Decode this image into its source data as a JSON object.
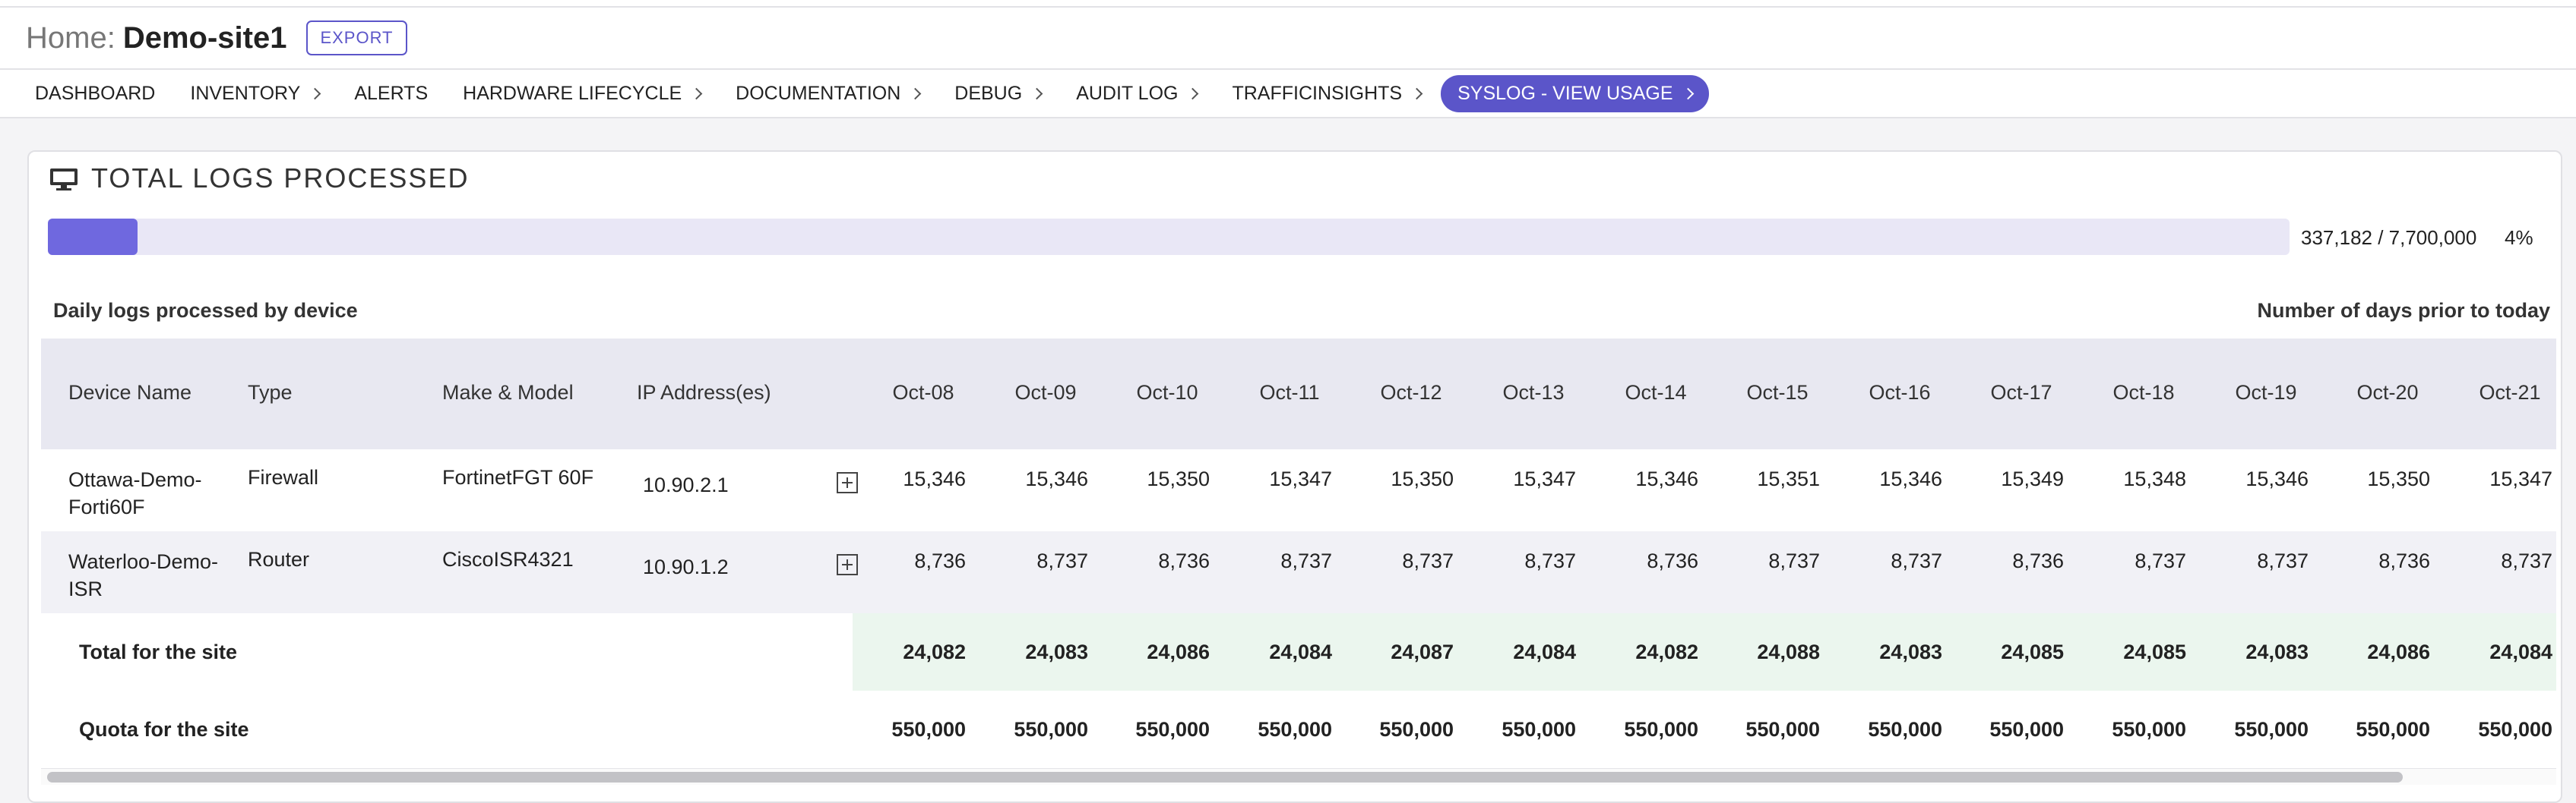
{
  "header": {
    "home_label": "Home:",
    "site_name": "Demo-site1",
    "export_label": "EXPORT"
  },
  "nav": {
    "items": [
      {
        "label": "DASHBOARD"
      },
      {
        "label": "INVENTORY"
      },
      {
        "label": "ALERTS"
      },
      {
        "label": "HARDWARE LIFECYCLE"
      },
      {
        "label": "DOCUMENTATION"
      },
      {
        "label": "DEBUG"
      },
      {
        "label": "AUDIT LOG"
      },
      {
        "label": "TRAFFICINSIGHTS"
      },
      {
        "label": "SYSLOG - VIEW USAGE"
      }
    ]
  },
  "card": {
    "title": "TOTAL LOGS PROCESSED",
    "progress_text": "337,182 / 7,700,000",
    "progress_pct": "4%",
    "progress_value": 0.04,
    "subtitle_left": "Daily logs processed by device",
    "subtitle_right": "Number of days prior to today"
  },
  "table": {
    "columns": [
      "Device Name",
      "Type",
      "Make & Model",
      "IP Address(es)"
    ],
    "dates": [
      "Oct-08",
      "Oct-09",
      "Oct-10",
      "Oct-11",
      "Oct-12",
      "Oct-13",
      "Oct-14",
      "Oct-15",
      "Oct-16",
      "Oct-17",
      "Oct-18",
      "Oct-19",
      "Oct-20",
      "Oct-21"
    ],
    "rows": [
      {
        "name_line1": "Ottawa-Demo-",
        "name_line2": "Forti60F",
        "type": "Firewall",
        "model": "FortinetFGT 60F",
        "ip": "10.90.2.1",
        "values": [
          "15,346",
          "15,346",
          "15,350",
          "15,347",
          "15,350",
          "15,347",
          "15,346",
          "15,351",
          "15,346",
          "15,349",
          "15,348",
          "15,346",
          "15,350",
          "15,347"
        ]
      },
      {
        "name_line1": "Waterloo-Demo-",
        "name_line2": "ISR",
        "type": "Router",
        "model": "CiscoISR4321",
        "ip": "10.90.1.2",
        "values": [
          "8,736",
          "8,737",
          "8,736",
          "8,737",
          "8,737",
          "8,737",
          "8,736",
          "8,737",
          "8,737",
          "8,736",
          "8,737",
          "8,737",
          "8,736",
          "8,737"
        ]
      }
    ],
    "total": {
      "label": "Total for the site",
      "values": [
        "24,082",
        "24,083",
        "24,086",
        "24,084",
        "24,087",
        "24,084",
        "24,082",
        "24,088",
        "24,083",
        "24,085",
        "24,085",
        "24,083",
        "24,086",
        "24,084"
      ]
    },
    "quota": {
      "label": "Quota for the site",
      "values": [
        "550,000",
        "550,000",
        "550,000",
        "550,000",
        "550,000",
        "550,000",
        "550,000",
        "550,000",
        "550,000",
        "550,000",
        "550,000",
        "550,000",
        "550,000",
        "550,000"
      ]
    }
  },
  "colors": {
    "accent": "#5b55c9",
    "progress_fill": "#6f68df",
    "progress_track": "#e9e7f6",
    "total_band": "#ebf6ee"
  }
}
